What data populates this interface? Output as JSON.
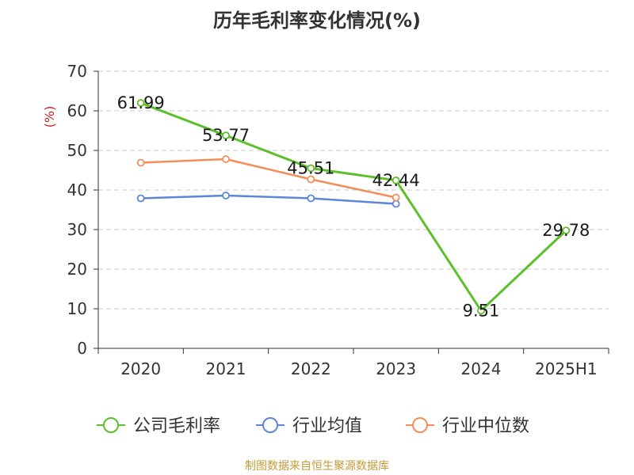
{
  "chart_data": {
    "type": "line",
    "title": "历年毛利率变化情况(%)",
    "ylabel": "(%)",
    "xlabel": "",
    "categories": [
      "2020",
      "2021",
      "2022",
      "2023",
      "2024",
      "2025H1"
    ],
    "ylim": [
      0,
      70
    ],
    "yticks": [
      0,
      10,
      20,
      30,
      40,
      50,
      60,
      70
    ],
    "grid": true,
    "legend_position": "bottom",
    "series": [
      {
        "name": "公司毛利率",
        "color": "#5cc02a",
        "values": [
          61.99,
          53.77,
          45.51,
          42.44,
          9.51,
          29.78
        ],
        "show_labels": true
      },
      {
        "name": "行业均值",
        "color": "#5b86d9",
        "values": [
          37.9,
          38.6,
          37.9,
          36.5,
          null,
          null
        ],
        "show_labels": false
      },
      {
        "name": "行业中位数",
        "color": "#f28e5a",
        "values": [
          46.9,
          47.8,
          42.7,
          38.1,
          null,
          null
        ],
        "show_labels": false
      }
    ]
  },
  "source_note": "制图数据来自恒生聚源数据库"
}
